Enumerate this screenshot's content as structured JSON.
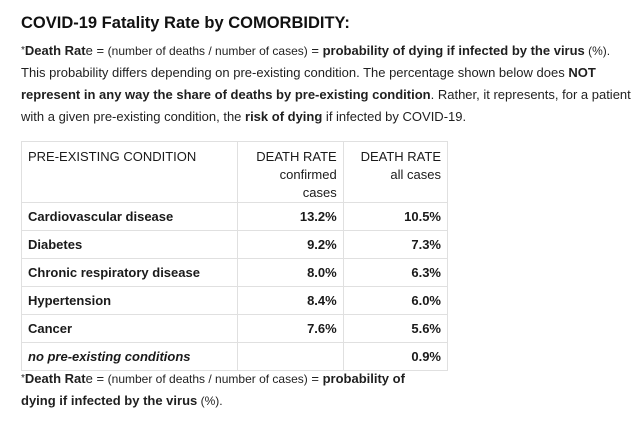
{
  "title": "COVID-19 Fatality Rate by COMORBIDITY:",
  "intro": {
    "star": "*",
    "death_rate_label": "Death Rat",
    "death_rate_e": "e",
    "equals": " = ",
    "formula": "(number of deaths / number of cases)",
    "equals2": " = ",
    "probability": "probability of dying if infected by the virus",
    "percent": " (%).",
    "sentence2": " This probability differs depending on pre-existing condition. The percentage shown below does ",
    "not_represent": "NOT represent in any way the share of deaths by pre-existing condition",
    "sentence3": ". Rather, it represents, for a patient with a given pre-existing condition, the ",
    "risk": "risk of dying",
    "sentence4": " if infected by COVID-19."
  },
  "table": {
    "headers": {
      "condition": "PRE-EXISTING CONDITION",
      "rate_confirmed_line1": "DEATH RATE",
      "rate_confirmed_line2": "confirmed cases",
      "rate_all_line1": "DEATH RATE",
      "rate_all_line2": "all cases"
    },
    "rows": [
      {
        "condition": "Cardiovascular disease",
        "confirmed": "13.2%",
        "all": "10.5%"
      },
      {
        "condition": "Diabetes",
        "confirmed": "9.2%",
        "all": "7.3%"
      },
      {
        "condition": "Chronic respiratory disease",
        "confirmed": "8.0%",
        "all": "6.3%"
      },
      {
        "condition": "Hypertension",
        "confirmed": "8.4%",
        "all": "6.0%"
      },
      {
        "condition": "Cancer",
        "confirmed": "7.6%",
        "all": "5.6%"
      },
      {
        "condition": "no pre-existing conditions",
        "confirmed": "",
        "all": "0.9%"
      }
    ]
  },
  "footnote": {
    "star": "*",
    "death_rate_label": "Death Rat",
    "death_rate_e": "e",
    "equals": " = ",
    "formula": "(number of deaths / number of cases)",
    "equals2": " = ",
    "probability": "probability of dying if infected by the virus",
    "percent": " (%)."
  }
}
